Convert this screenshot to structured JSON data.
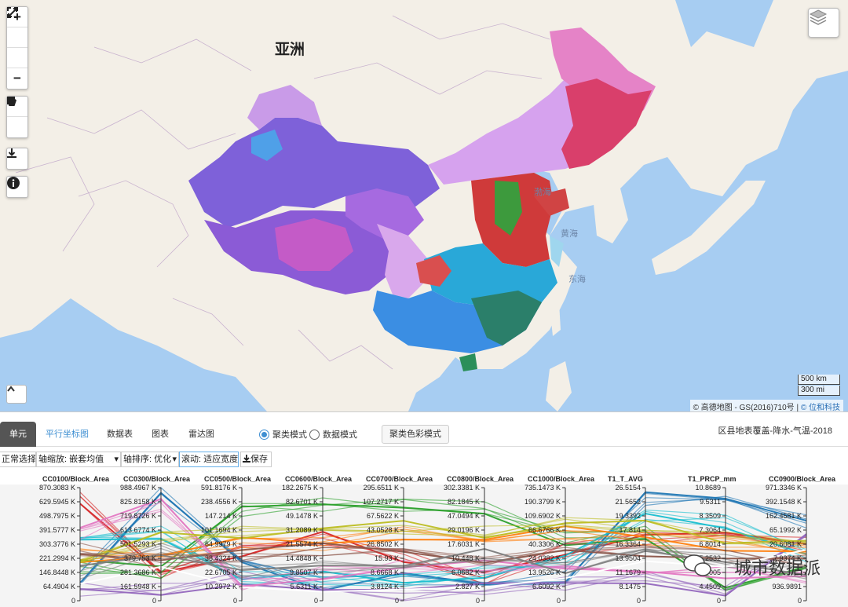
{
  "map": {
    "continent_label": "亚洲",
    "sea_labels": [
      "渤海",
      "黄海",
      "东海"
    ],
    "controls": {
      "zoom_in": "+",
      "zoom_out": "−",
      "fullscreen_icon": "fullscreen-icon",
      "reset_icon": "reset-extent-icon",
      "polygon_icon": "polygon-draw-icon",
      "rect_icon": "rectangle-draw-icon",
      "download_icon": "download-icon",
      "info_icon": "info-icon",
      "layers_icon": "layers-icon",
      "collapse_icon": "chevron-up-icon"
    },
    "scale": [
      "500 km",
      "300 mi"
    ],
    "attribution_prefix": "© 高德地图 - GS(2016)710号 | ",
    "attribution_link": "© 位和科技"
  },
  "panel": {
    "tabs": [
      "单元",
      "平行坐标图",
      "数据表",
      "图表",
      "雷达图"
    ],
    "active_tab": "单元",
    "selected_tab": "平行坐标图",
    "mode_radio": [
      {
        "label": "聚类模式",
        "checked": true
      },
      {
        "label": "数据模式",
        "checked": false
      }
    ],
    "color_button": "聚类色彩模式",
    "dataset_title": "区县地表覆盖-降水-气温-2018",
    "toolbar": {
      "select": "正常选择",
      "axis_zoom": "轴缩放: 嵌套均值",
      "axis_order": "轴排序: 优化",
      "scroll": "滚动: 适应宽度",
      "save": "保存"
    }
  },
  "chart_data": {
    "type": "parallel-coordinates",
    "axes": [
      {
        "name": "CC0100/Block_Area",
        "ticks": [
          "870.3083 K",
          "629.5945 K",
          "498.7975 K",
          "391.5777 K",
          "303.3776 K",
          "221.2994 K",
          "146.8448 K",
          "64.4904 K",
          "0"
        ]
      },
      {
        "name": "CC0300/Block_Area",
        "ticks": [
          "988.4967 K",
          "825.8158 K",
          "719.8726 K",
          "613.6774 K",
          "501.5293 K",
          "379.753 K",
          "281.3686 K",
          "161.5948 K",
          "0"
        ]
      },
      {
        "name": "CC0500/Block_Area",
        "ticks": [
          "591.8176 K",
          "238.4556 K",
          "147.214 K",
          "101.1694 K",
          "64.9979 K",
          "38.4324 K",
          "22.6705 K",
          "10.2972 K",
          "0"
        ]
      },
      {
        "name": "CC0600/Block_Area",
        "ticks": [
          "182.2675 K",
          "82.6701 K",
          "49.1478 K",
          "31.2089 K",
          "21.5574 K",
          "14.4848 K",
          "9.8507 K",
          "5.6311 K",
          "0"
        ]
      },
      {
        "name": "CC0700/Block_Area",
        "ticks": [
          "295.6511 K",
          "107.2717 K",
          "67.5622 K",
          "43.0528 K",
          "26.8502 K",
          "15.93 K",
          "8.6668 K",
          "3.8124 K",
          "0"
        ]
      },
      {
        "name": "CC0800/Block_Area",
        "ticks": [
          "302.3381 K",
          "82.1845 K",
          "47.0494 K",
          "29.0196 K",
          "17.6031 K",
          "10.448 K",
          "6.0682 K",
          "2.827 K",
          "0"
        ]
      },
      {
        "name": "CC1000/Block_Area",
        "ticks": [
          "735.1473 K",
          "190.3799 K",
          "109.6902 K",
          "66.6766 K",
          "40.3306 K",
          "24.0382 K",
          "13.9526 K",
          "6.6092 K",
          "0"
        ]
      },
      {
        "name": "T1_T_AVG",
        "ticks": [
          "26.5154",
          "21.5652",
          "19.3392",
          "17.814",
          "16.3364",
          "13.9504",
          "11.1679",
          "8.1475",
          "0"
        ]
      },
      {
        "name": "T1_PRCP_mm",
        "ticks": [
          "10.8689",
          "9.5311",
          "8.3509",
          "7.3064",
          "6.8014",
          "5.2532",
          "4.9005",
          "4.4509",
          "0"
        ]
      },
      {
        "name": "CC0900/Block_Area",
        "ticks": [
          "971.3346 K",
          "392.1548 K",
          "162.4581 K",
          "65.1992 K",
          "20.6081 K",
          "7.9374 K",
          "",
          "936.9891",
          "0"
        ]
      }
    ],
    "watermark": "城市数据派",
    "clusters": [
      {
        "color": "#d62728",
        "values": [
          0.9,
          0.2,
          0.45,
          0.55,
          0.4,
          0.2,
          0.45,
          0.55,
          0.62,
          0.5
        ]
      },
      {
        "color": "#2ca02c",
        "values": [
          0.3,
          0.25,
          0.8,
          0.85,
          0.85,
          0.82,
          0.55,
          0.6,
          0.15,
          0.3
        ]
      },
      {
        "color": "#1f77b4",
        "values": [
          0.2,
          0.95,
          0.3,
          0.15,
          0.2,
          0.15,
          0.2,
          0.9,
          0.95,
          0.7
        ]
      },
      {
        "color": "#9467bd",
        "values": [
          0.1,
          0.1,
          0.2,
          0.1,
          0.05,
          0.1,
          0.15,
          0.2,
          0.1,
          0.6
        ]
      },
      {
        "color": "#17becf",
        "values": [
          0.5,
          0.6,
          0.2,
          0.2,
          0.18,
          0.25,
          0.35,
          0.75,
          0.7,
          0.4
        ]
      },
      {
        "color": "#ff7f0e",
        "values": [
          0.4,
          0.4,
          0.5,
          0.5,
          0.6,
          0.55,
          0.6,
          0.55,
          0.5,
          0.45
        ]
      },
      {
        "color": "#e377c2",
        "values": [
          0.6,
          0.85,
          0.15,
          0.25,
          0.3,
          0.3,
          0.25,
          0.3,
          0.25,
          0.2
        ]
      },
      {
        "color": "#bcbd22",
        "values": [
          0.35,
          0.55,
          0.6,
          0.65,
          0.65,
          0.6,
          0.7,
          0.65,
          0.55,
          0.55
        ]
      },
      {
        "color": "#8c564b",
        "values": [
          0.45,
          0.35,
          0.4,
          0.45,
          0.4,
          0.35,
          0.5,
          0.45,
          0.4,
          0.35
        ]
      },
      {
        "color": "#7f7f7f",
        "values": [
          0.25,
          0.45,
          0.25,
          0.3,
          0.35,
          0.4,
          0.3,
          0.4,
          0.35,
          0.25
        ]
      }
    ]
  }
}
